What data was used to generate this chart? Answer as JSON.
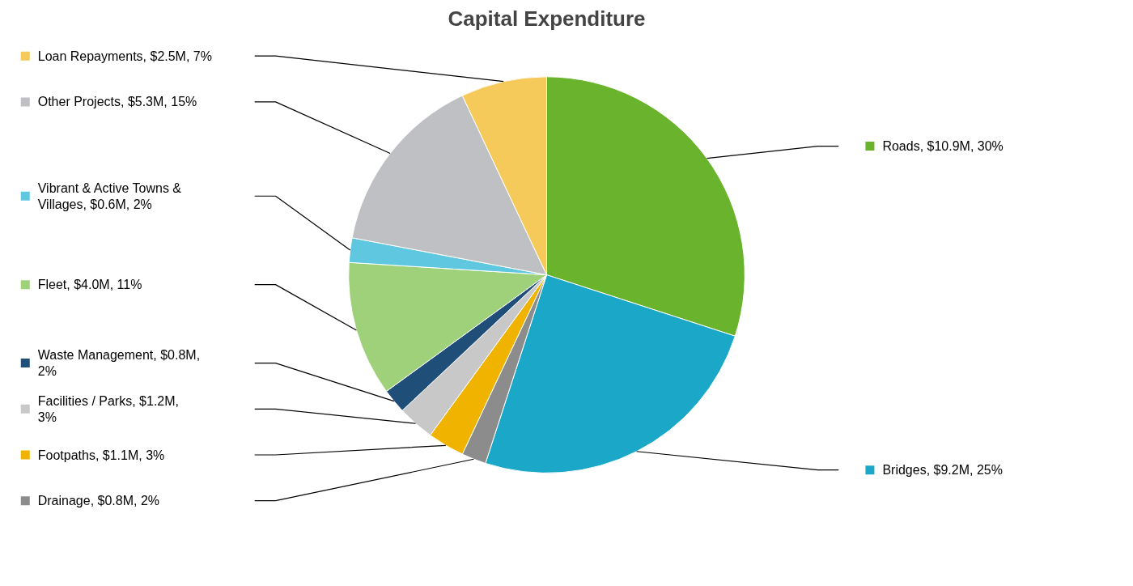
{
  "chart_data": {
    "type": "pie",
    "title": "Capital Expenditure",
    "categories": [
      "Roads",
      "Bridges",
      "Drainage",
      "Footpaths",
      "Facilities / Parks",
      "Waste Management",
      "Fleet",
      "Vibrant & Active Towns & Villages",
      "Other Projects",
      "Loan Repayments"
    ],
    "values": [
      30,
      25,
      2,
      3,
      3,
      2,
      11,
      2,
      15,
      7
    ],
    "value_labels": [
      "$10.9M, 30%",
      "$9.2M, 25%",
      "$0.8M, 2%",
      "$1.1M, 3%",
      "$1.2M, 3%",
      "$0.8M, 2%",
      "$4.0M, 11%",
      "$0.6M, 2%",
      "$5.3M, 15%",
      "$2.5M, 7%"
    ],
    "legend": "left",
    "colors": [
      "#6ab42d",
      "#1ba8c8",
      "#8c8c8c",
      "#f0b400",
      "#c8c8c8",
      "#1f4e79",
      "#9fd07a",
      "#5fc8e0",
      "#bfc0c4",
      "#f5c95a"
    ]
  }
}
